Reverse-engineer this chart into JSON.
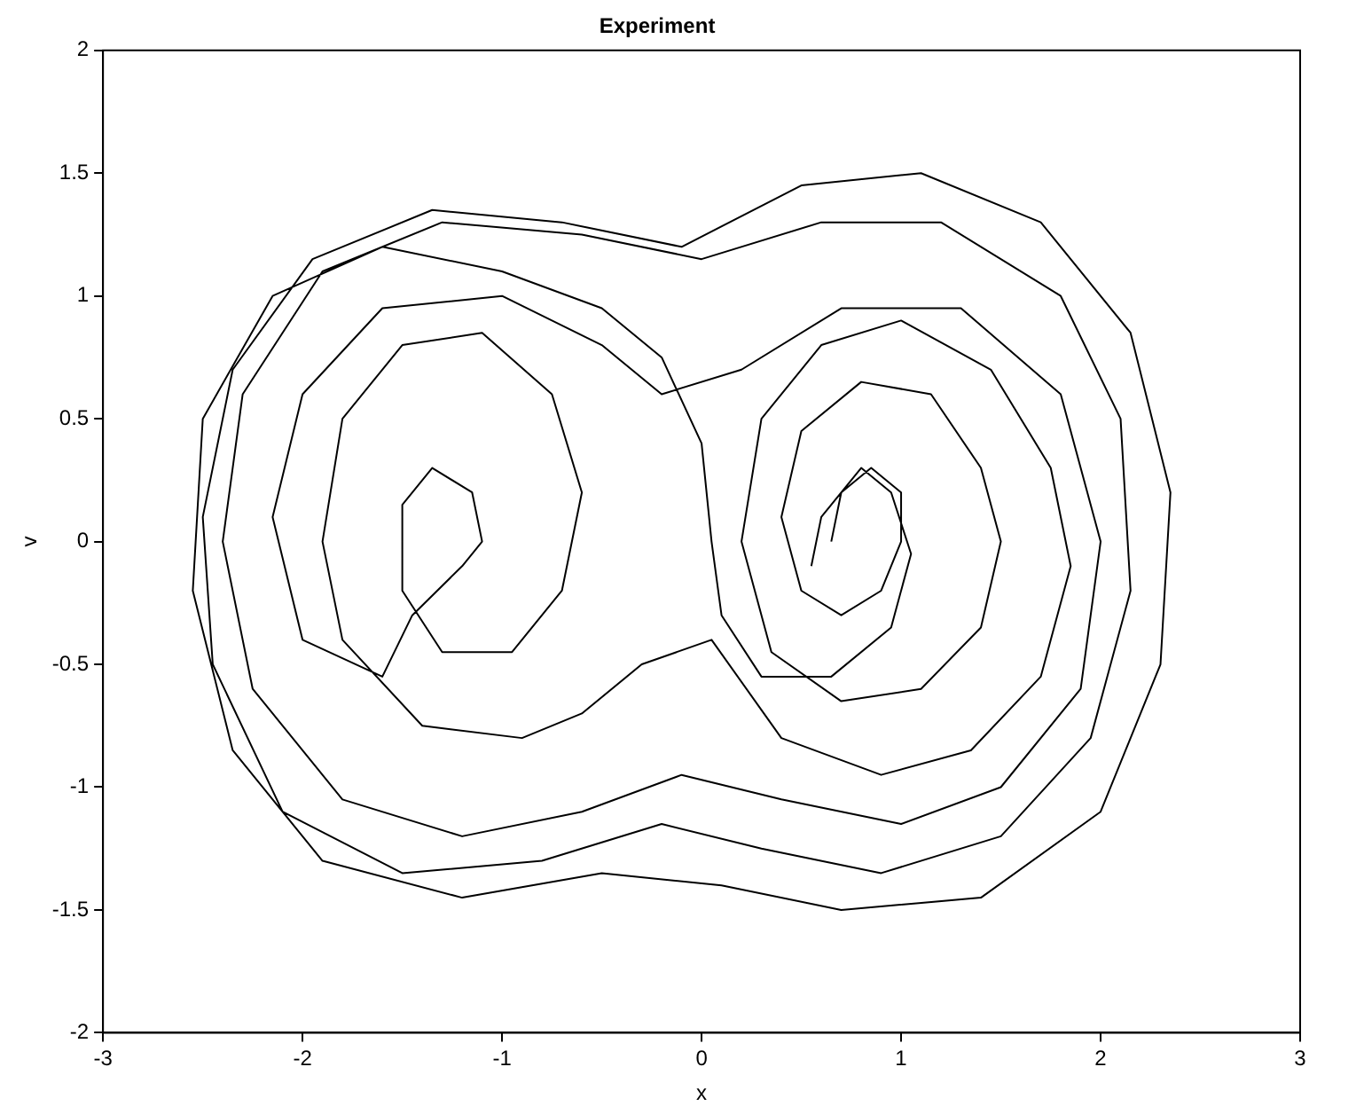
{
  "chart_data": {
    "type": "line",
    "title": "Experiment",
    "xlabel": "x",
    "ylabel": "v",
    "xlim": [
      -3,
      3
    ],
    "xticks": [
      -3,
      -2,
      -1,
      0,
      1,
      2,
      3
    ],
    "ylim": [
      -2,
      2
    ],
    "yticks": [
      -2,
      -1.5,
      -1,
      -0.5,
      0,
      0.5,
      1,
      1.5,
      2
    ],
    "grid": false,
    "legend": false,
    "marker": "none",
    "line_style": "solid",
    "series": [
      {
        "color": "#000000",
        "x": [
          0.65,
          0.7,
          0.85,
          1.0,
          1.0,
          0.9,
          0.7,
          0.5,
          0.4,
          0.5,
          0.8,
          1.15,
          1.4,
          1.5,
          1.4,
          1.1,
          0.7,
          0.35,
          0.2,
          0.3,
          0.6,
          1.0,
          1.45,
          1.75,
          1.85,
          1.7,
          1.35,
          0.9,
          0.4,
          0.05,
          -0.3,
          -0.6,
          -0.9,
          -1.4,
          -1.8,
          -1.9,
          -1.8,
          -1.5,
          -1.1,
          -0.75,
          -0.6,
          -0.7,
          -0.95,
          -1.3,
          -1.5,
          -1.5,
          -1.35,
          -1.15,
          -1.1,
          -1.2,
          -1.45,
          -1.6,
          -2.0,
          -2.15,
          -2.0,
          -1.6,
          -1.0,
          -0.5,
          -0.2,
          0.2,
          0.7,
          1.3,
          1.8,
          2.0,
          1.9,
          1.5,
          1.0,
          0.4,
          -0.1,
          -0.6,
          -1.2,
          -1.8,
          -2.25,
          -2.4,
          -2.3,
          -1.9,
          -1.3,
          -0.6,
          0,
          0.6,
          1.2,
          1.8,
          2.1,
          2.15,
          1.95,
          1.5,
          0.9,
          0.3,
          -0.2,
          -0.8,
          -1.5,
          -2.1,
          -2.45,
          -2.5,
          -2.35,
          -1.95,
          -1.35,
          -0.7,
          -0.1,
          0.5,
          1.1,
          1.7,
          2.15,
          2.35,
          2.3,
          2.0,
          1.4,
          0.7,
          0.1,
          -0.5,
          -1.2,
          -1.9,
          -2.35,
          -2.55,
          -2.5,
          -2.15,
          -1.6,
          -1.0,
          -0.5,
          -0.2,
          0,
          0.05,
          0.1,
          0.3,
          0.65,
          0.95,
          1.05,
          0.95,
          0.8,
          0.6,
          0.55
        ],
        "values": [
          0,
          0.2,
          0.3,
          0.2,
          0,
          -0.2,
          -0.3,
          -0.2,
          0.1,
          0.45,
          0.65,
          0.6,
          0.3,
          0,
          -0.35,
          -0.6,
          -0.65,
          -0.45,
          0,
          0.5,
          0.8,
          0.9,
          0.7,
          0.3,
          -0.1,
          -0.55,
          -0.85,
          -0.95,
          -0.8,
          -0.4,
          -0.5,
          -0.7,
          -0.8,
          -0.75,
          -0.4,
          0,
          0.5,
          0.8,
          0.85,
          0.6,
          0.2,
          -0.2,
          -0.45,
          -0.45,
          -0.2,
          0.15,
          0.3,
          0.2,
          0,
          -0.1,
          -0.3,
          -0.55,
          -0.4,
          0.1,
          0.6,
          0.95,
          1.0,
          0.8,
          0.6,
          0.7,
          0.95,
          0.95,
          0.6,
          0,
          -0.6,
          -1.0,
          -1.15,
          -1.05,
          -0.95,
          -1.1,
          -1.2,
          -1.05,
          -0.6,
          0,
          0.6,
          1.1,
          1.3,
          1.25,
          1.15,
          1.3,
          1.3,
          1.0,
          0.5,
          -0.2,
          -0.8,
          -1.2,
          -1.35,
          -1.25,
          -1.15,
          -1.3,
          -1.35,
          -1.1,
          -0.5,
          0.1,
          0.7,
          1.15,
          1.35,
          1.3,
          1.2,
          1.45,
          1.5,
          1.3,
          0.85,
          0.2,
          -0.5,
          -1.1,
          -1.45,
          -1.5,
          -1.4,
          -1.35,
          -1.45,
          -1.3,
          -0.85,
          -0.2,
          0.5,
          1.0,
          1.2,
          1.1,
          0.95,
          0.75,
          0.4,
          0,
          -0.3,
          -0.55,
          -0.55,
          -0.35,
          -0.05,
          0.2,
          0.3,
          0.1,
          -0.1
        ]
      }
    ]
  }
}
